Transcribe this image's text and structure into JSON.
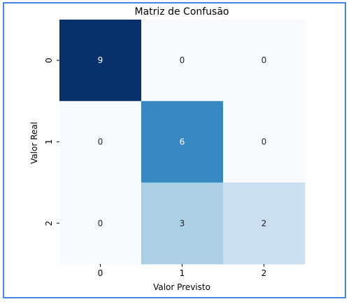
{
  "chart_data": {
    "type": "heatmap",
    "title": "Matriz de Confusão",
    "xlabel": "Valor Previsto",
    "ylabel": "Valor Real",
    "x_categories": [
      "0",
      "1",
      "2"
    ],
    "y_categories": [
      "0",
      "1",
      "2"
    ],
    "values": [
      [
        9,
        0,
        0
      ],
      [
        0,
        6,
        0
      ],
      [
        0,
        3,
        2
      ]
    ],
    "colormap": "Blues",
    "vmin": 0,
    "vmax": 9,
    "colorbar": false,
    "annotate": true
  }
}
